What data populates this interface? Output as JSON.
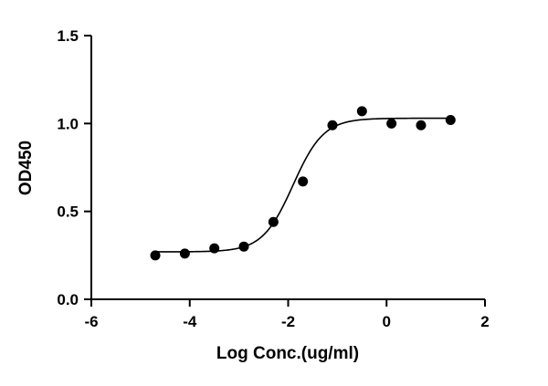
{
  "chart_data": {
    "type": "scatter",
    "title": "",
    "xlabel": "Log Conc.(ug/ml)",
    "ylabel": "OD450",
    "xlim": [
      -6,
      2
    ],
    "ylim": [
      0,
      1.5
    ],
    "x_ticks": [
      -6,
      -4,
      -2,
      0,
      2
    ],
    "x_tick_labels": [
      "-6",
      "-4",
      "-2",
      "0",
      "2"
    ],
    "y_ticks": [
      0,
      0.5,
      1.0,
      1.5
    ],
    "y_tick_labels": [
      "0.0",
      "0.5",
      "1.0",
      "1.5"
    ],
    "grid": false,
    "legend": "none",
    "series": [
      {
        "x": [
          -4.7,
          -4.1,
          -3.5,
          -2.9,
          -2.3,
          -1.7,
          -1.1,
          -0.5,
          0.1,
          0.7,
          1.3
        ],
        "y": [
          0.25,
          0.26,
          0.29,
          0.3,
          0.44,
          0.67,
          0.99,
          1.07,
          1.0,
          0.99,
          1.02
        ]
      }
    ],
    "fit_curve": {
      "model": "4PL",
      "bottom": 0.27,
      "top": 1.03,
      "logEC50": -1.9,
      "hill": 1.4,
      "x_range": [
        -4.7,
        1.3
      ]
    },
    "colors": {
      "points": "#000000",
      "curve": "#000000",
      "axes": "#000000"
    }
  }
}
